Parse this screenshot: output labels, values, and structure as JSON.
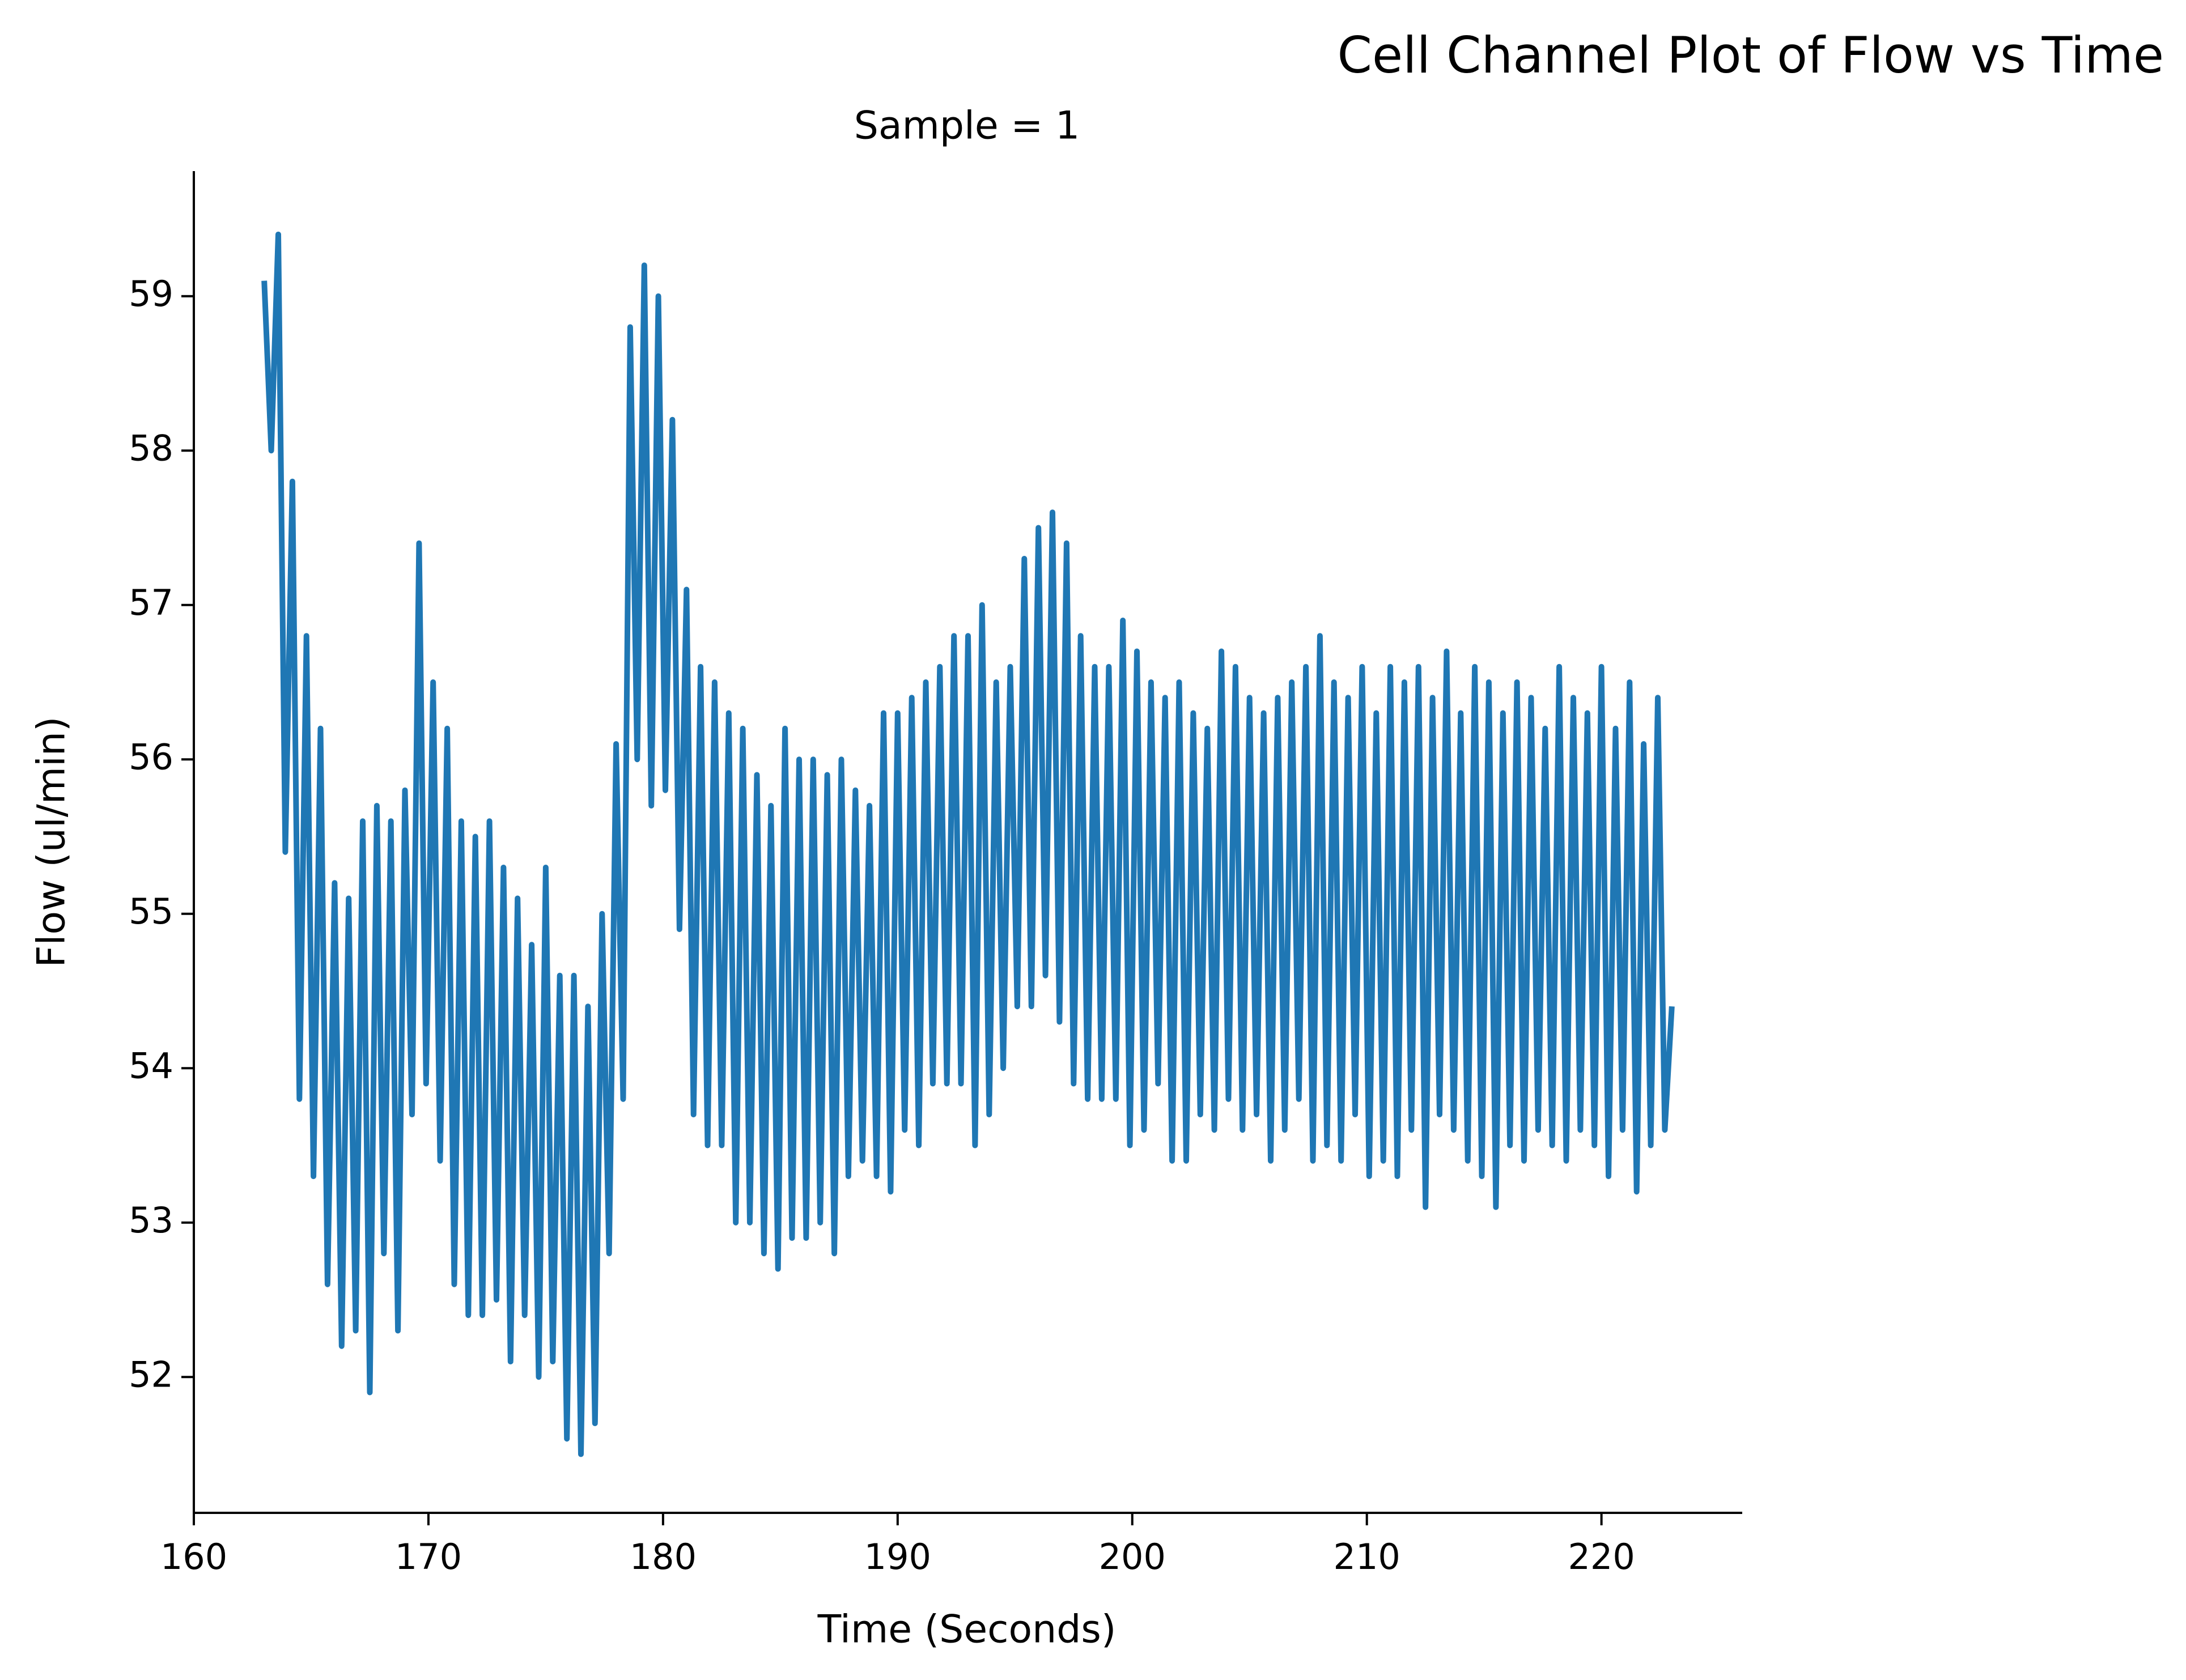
{
  "chart_data": {
    "type": "line",
    "title": "Cell Channel Plot of Flow vs Time",
    "subtitle": "Sample = 1",
    "xlabel": "Time (Seconds)",
    "ylabel": "Flow (ul/min)",
    "x": [
      163,
      163.3,
      163.6,
      163.9,
      164.2,
      164.5,
      164.8,
      165.1,
      165.4,
      165.7,
      166,
      166.3,
      166.6,
      166.9,
      167.2,
      167.5,
      167.8,
      168.1,
      168.4,
      168.7,
      169,
      169.3,
      169.6,
      169.9,
      170.2,
      170.5,
      170.8,
      171.1,
      171.4,
      171.7,
      172,
      172.3,
      172.6,
      172.9,
      173.2,
      173.5,
      173.8,
      174.1,
      174.4,
      174.7,
      175,
      175.3,
      175.6,
      175.9,
      176.2,
      176.5,
      176.8,
      177.1,
      177.4,
      177.7,
      178,
      178.3,
      178.6,
      178.9,
      179.2,
      179.5,
      179.8,
      180.1,
      180.4,
      180.7,
      181,
      181.3,
      181.6,
      181.9,
      182.2,
      182.5,
      182.8,
      183.1,
      183.4,
      183.7,
      184,
      184.3,
      184.6,
      184.9,
      185.2,
      185.5,
      185.8,
      186.1,
      186.4,
      186.7,
      187,
      187.3,
      187.6,
      187.9,
      188.2,
      188.5,
      188.8,
      189.1,
      189.4,
      189.7,
      190,
      190.3,
      190.6,
      190.9,
      191.2,
      191.5,
      191.8,
      192.1,
      192.4,
      192.7,
      193,
      193.3,
      193.6,
      193.9,
      194.2,
      194.5,
      194.8,
      195.1,
      195.4,
      195.7,
      196,
      196.3,
      196.6,
      196.9,
      197.2,
      197.5,
      197.8,
      198.1,
      198.4,
      198.7,
      199,
      199.3,
      199.6,
      199.9,
      200.2,
      200.5,
      200.8,
      201.1,
      201.4,
      201.7,
      202,
      202.3,
      202.6,
      202.9,
      203.2,
      203.5,
      203.8,
      204.1,
      204.4,
      204.7,
      205,
      205.3,
      205.6,
      205.9,
      206.2,
      206.5,
      206.8,
      207.1,
      207.4,
      207.7,
      208,
      208.3,
      208.6,
      208.9,
      209.2,
      209.5,
      209.8,
      210.1,
      210.4,
      210.7,
      211,
      211.3,
      211.6,
      211.9,
      212.2,
      212.5,
      212.8,
      213.1,
      213.4,
      213.7,
      214,
      214.3,
      214.6,
      214.9,
      215.2,
      215.5,
      215.8,
      216.1,
      216.4,
      216.7,
      217,
      217.3,
      217.6,
      217.9,
      218.2,
      218.5,
      218.8,
      219.1,
      219.4,
      219.7,
      220,
      220.3,
      220.6,
      220.9,
      221.2,
      221.5,
      221.8,
      222.1,
      222.4,
      222.7,
      223
    ],
    "series": [
      {
        "name": "Flow",
        "color": "#1f77b4",
        "values": [
          59.1,
          58.0,
          59.4,
          55.4,
          57.8,
          53.8,
          56.8,
          53.3,
          56.2,
          52.6,
          55.2,
          52.2,
          55.1,
          52.3,
          55.6,
          51.9,
          55.7,
          52.8,
          55.6,
          52.3,
          55.8,
          53.7,
          57.4,
          53.9,
          56.5,
          53.4,
          56.2,
          52.6,
          55.6,
          52.4,
          55.5,
          52.4,
          55.6,
          52.5,
          55.3,
          52.1,
          55.1,
          52.4,
          54.8,
          52.0,
          55.3,
          52.1,
          54.6,
          51.6,
          54.6,
          51.5,
          54.4,
          51.7,
          55.0,
          52.8,
          56.1,
          53.8,
          58.8,
          56.0,
          59.2,
          55.7,
          59.0,
          55.8,
          58.2,
          54.9,
          57.1,
          53.7,
          56.6,
          53.5,
          56.5,
          53.5,
          56.3,
          53.0,
          56.2,
          53.0,
          55.9,
          52.8,
          55.7,
          52.7,
          56.2,
          52.9,
          56.0,
          52.9,
          56.0,
          53.0,
          55.9,
          52.8,
          56.0,
          53.3,
          55.8,
          53.4,
          55.7,
          53.3,
          56.3,
          53.2,
          56.3,
          53.6,
          56.4,
          53.5,
          56.5,
          53.9,
          56.6,
          53.9,
          56.8,
          53.9,
          56.8,
          53.5,
          57.0,
          53.7,
          56.5,
          54.0,
          56.6,
          54.4,
          57.3,
          54.4,
          57.5,
          54.6,
          57.6,
          54.3,
          57.4,
          53.9,
          56.8,
          53.8,
          56.6,
          53.8,
          56.6,
          53.8,
          56.9,
          53.5,
          56.7,
          53.6,
          56.5,
          53.9,
          56.4,
          53.4,
          56.5,
          53.4,
          56.3,
          53.7,
          56.2,
          53.6,
          56.7,
          53.8,
          56.6,
          53.6,
          56.4,
          53.7,
          56.3,
          53.4,
          56.4,
          53.6,
          56.5,
          53.8,
          56.6,
          53.4,
          56.8,
          53.5,
          56.5,
          53.4,
          56.4,
          53.7,
          56.6,
          53.3,
          56.3,
          53.4,
          56.6,
          53.3,
          56.5,
          53.6,
          56.6,
          53.1,
          56.4,
          53.7,
          56.7,
          53.6,
          56.3,
          53.4,
          56.6,
          53.3,
          56.5,
          53.1,
          56.3,
          53.5,
          56.5,
          53.4,
          56.4,
          53.6,
          56.2,
          53.5,
          56.6,
          53.4,
          56.4,
          53.6,
          56.3,
          53.5,
          56.6,
          53.3,
          56.2,
          53.6,
          56.5,
          53.2,
          56.1,
          53.5,
          56.4,
          53.6,
          54.4
        ]
      }
    ],
    "xlim": [
      160,
      226
    ],
    "xticks": [
      160,
      170,
      180,
      190,
      200,
      210,
      220
    ],
    "ylim": [
      51.12,
      59.81
    ],
    "yticks": [
      52,
      53,
      54,
      55,
      56,
      57,
      58,
      59
    ],
    "grid": false
  }
}
